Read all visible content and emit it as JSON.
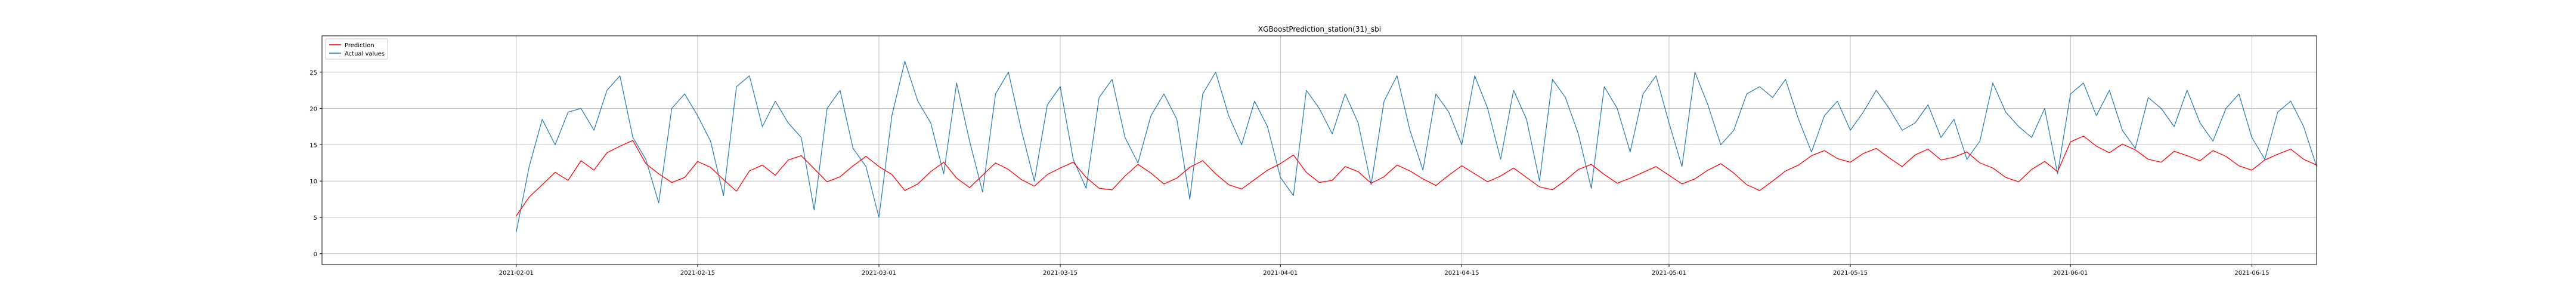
{
  "chart_data": {
    "type": "line",
    "title": "XGBoostPrediction_station(31)_sbi",
    "xlabel": "",
    "ylabel": "",
    "x_range": [
      "2021-01-17",
      "2021-06-20"
    ],
    "x_ticks": [
      "2021-02-01",
      "2021-02-15",
      "2021-03-01",
      "2021-03-15",
      "2021-04-01",
      "2021-04-15",
      "2021-05-01",
      "2021-05-15",
      "2021-06-01",
      "2021-06-15"
    ],
    "ylim": [
      -1.5,
      30
    ],
    "y_ticks": [
      0,
      5,
      10,
      15,
      20,
      25
    ],
    "grid": true,
    "legend_position": "top-left",
    "series": [
      {
        "name": "Prediction",
        "color": "#ff0000",
        "x_start": "2021-02-01",
        "step_days": 1,
        "values": [
          5.2,
          7.8,
          9.5,
          11.2,
          10.1,
          12.8,
          11.5,
          13.9,
          14.8,
          15.6,
          12.4,
          11.0,
          9.8,
          10.5,
          12.7,
          11.9,
          10.2,
          8.6,
          11.4,
          12.2,
          10.8,
          12.9,
          13.5,
          11.7,
          9.9,
          10.6,
          12.1,
          13.4,
          12.0,
          10.9,
          8.7,
          9.6,
          11.3,
          12.6,
          10.4,
          9.1,
          10.8,
          12.5,
          11.6,
          10.2,
          9.3,
          10.9,
          11.8,
          12.6,
          10.5,
          9.0,
          8.8,
          10.7,
          12.3,
          11.1,
          9.6,
          10.4,
          11.9,
          12.8,
          11.0,
          9.5,
          8.9,
          10.2,
          11.5,
          12.4,
          13.6,
          11.2,
          9.8,
          10.1,
          12.0,
          11.3,
          9.7,
          10.6,
          12.2,
          11.4,
          10.3,
          9.4,
          10.8,
          12.1,
          11.0,
          9.9,
          10.7,
          11.8,
          10.5,
          9.2,
          8.8,
          10.1,
          11.6,
          12.3,
          10.9,
          9.7,
          10.4,
          11.2,
          12.0,
          10.8,
          9.6,
          10.3,
          11.5,
          12.4,
          11.1,
          9.5,
          8.7,
          10.0,
          11.4,
          12.2,
          13.5,
          14.2,
          13.1,
          12.6,
          13.8,
          14.5,
          13.2,
          12.0,
          13.6,
          14.4,
          12.9,
          13.3,
          14.0,
          12.5,
          11.8,
          10.5,
          9.9,
          11.6,
          12.7,
          11.3,
          15.4,
          16.2,
          14.8,
          13.9,
          15.1,
          14.3,
          13.0,
          12.6,
          14.1,
          13.5,
          12.8,
          14.2,
          13.4,
          12.1,
          11.5,
          12.9,
          13.7,
          14.4,
          13.0,
          12.2
        ],
        "source_note": ""
      },
      {
        "name": "Actual values",
        "color": "#1f77b4",
        "x_start": "2021-02-01",
        "step_days": 1,
        "values": [
          3.0,
          12.0,
          18.5,
          15.0,
          19.5,
          20.0,
          17.0,
          22.5,
          24.5,
          16.0,
          13.0,
          7.0,
          20.0,
          22.0,
          19.0,
          15.5,
          8.0,
          23.0,
          24.5,
          17.5,
          21.0,
          18.0,
          16.0,
          6.0,
          20.0,
          22.5,
          14.5,
          12.0,
          5.0,
          19.0,
          26.5,
          21.0,
          18.0,
          11.0,
          23.5,
          15.5,
          8.5,
          22.0,
          25.0,
          17.0,
          10.0,
          20.5,
          23.0,
          13.0,
          9.0,
          21.5,
          24.0,
          16.0,
          12.5,
          19.0,
          22.0,
          18.5,
          7.5,
          22.0,
          25.0,
          19.0,
          15.0,
          21.0,
          17.5,
          10.5,
          8.0,
          22.5,
          20.0,
          16.5,
          22.0,
          18.0,
          9.5,
          21.0,
          24.5,
          17.0,
          11.5,
          22.0,
          19.5,
          15.0,
          24.5,
          20.0,
          13.0,
          22.5,
          18.5,
          10.0,
          24.0,
          21.5,
          16.5,
          9.0,
          23.0,
          20.0,
          14.0,
          22.0,
          24.5,
          18.0,
          12.0,
          25.0,
          20.5,
          15.0,
          17.0,
          22.0,
          23.0,
          21.5,
          24.0,
          18.5,
          14.0,
          19.0,
          21.0,
          17.0,
          19.5,
          22.5,
          20.0,
          17.0,
          18.0,
          20.5,
          16.0,
          18.5,
          13.0,
          15.5,
          23.5,
          19.5,
          17.5,
          16.0,
          20.0,
          11.0,
          22.0,
          23.5,
          19.0,
          22.5,
          17.0,
          14.5,
          21.5,
          20.0,
          17.5,
          22.5,
          18.0,
          15.5,
          20.0,
          22.0,
          16.0,
          13.0,
          19.5,
          21.0,
          17.5,
          12.0
        ],
        "source_note": ""
      }
    ]
  }
}
